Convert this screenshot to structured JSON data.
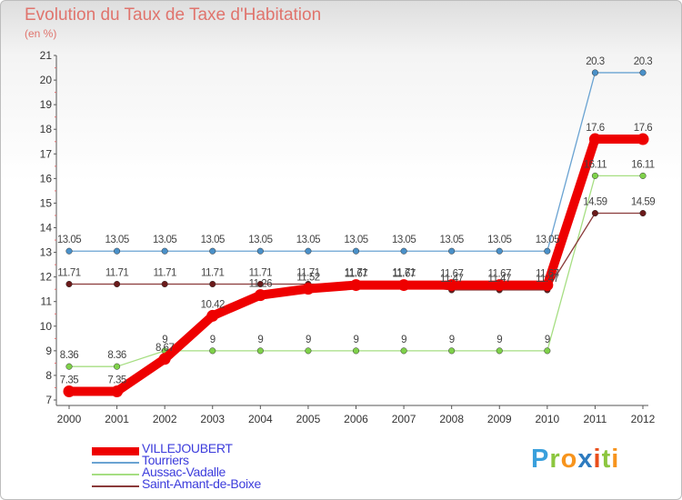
{
  "title": "Evolution du Taux de Taxe d'Habitation",
  "subtitle": "(en %)",
  "logo": [
    "P",
    "r",
    "o",
    "x",
    "i",
    "t",
    "i"
  ],
  "logo_colors": [
    "#3aa0dc",
    "#8cc63f",
    "#f7941d",
    "#2e7bbf",
    "#e94e1b",
    "#8cc63f",
    "#f7941d"
  ],
  "chart_data": {
    "type": "line",
    "x": [
      "2000",
      "2001",
      "2002",
      "2003",
      "2004",
      "2005",
      "2006",
      "2007",
      "2008",
      "2009",
      "2010",
      "2011",
      "2012"
    ],
    "ylim": [
      7,
      21
    ],
    "yticks": [
      "7",
      "8",
      "9",
      "10",
      "11",
      "12",
      "13",
      "14",
      "15",
      "16",
      "17",
      "18",
      "19",
      "20",
      "21"
    ],
    "grid": false,
    "series": [
      {
        "name": "Tourriers",
        "color": "#6aa3d2",
        "marker": "#4a90c8",
        "thick": false,
        "values": [
          13.05,
          13.05,
          13.05,
          13.05,
          13.05,
          13.05,
          13.05,
          13.05,
          13.05,
          13.05,
          13.05,
          20.3,
          20.3
        ],
        "labels": [
          "13.05",
          "13.05",
          "13.05",
          "13.05",
          "13.05",
          "13.05",
          "13.05",
          "13.05",
          "13.05",
          "13.05",
          "13.05",
          "20.3",
          "20.3"
        ]
      },
      {
        "name": "Aussac-Vadalle",
        "color": "#a6de82",
        "marker": "#7fd14a",
        "thick": false,
        "values": [
          8.36,
          8.36,
          9,
          9,
          9,
          9,
          9,
          9,
          9,
          9,
          9,
          16.11,
          16.11
        ],
        "labels": [
          "8.36",
          "8.36",
          "9",
          "9",
          "9",
          "9",
          "9",
          "9",
          "9",
          "9",
          "9",
          "16.11",
          "16.11"
        ]
      },
      {
        "name": "Saint-Amant-de-Boixe",
        "color": "#8a3a3a",
        "marker": "#6a1a1a",
        "thick": false,
        "values": [
          11.71,
          11.71,
          11.71,
          11.71,
          11.71,
          11.71,
          11.71,
          11.71,
          11.47,
          11.47,
          11.47,
          14.59,
          14.59
        ],
        "labels": [
          "11.71",
          "11.71",
          "11.71",
          "11.71",
          "11.71",
          "11.71",
          "11.71",
          "11.71",
          "11.47",
          "11.47",
          "11.47",
          "14.59",
          "14.59"
        ]
      },
      {
        "name": "VILLEJOUBERT",
        "color": "#ee0000",
        "marker": "#ee0000",
        "thick": true,
        "values": [
          7.35,
          7.35,
          8.67,
          10.42,
          11.26,
          11.52,
          11.67,
          11.67,
          11.67,
          11.67,
          11.67,
          17.6,
          17.6
        ],
        "labels": [
          "7.35",
          "7.35",
          "8.67",
          "10.42",
          "11.26",
          "11.52",
          "11.67",
          "11.67",
          "11.67",
          "11.67",
          "11.67",
          "17.6",
          "17.6"
        ]
      }
    ],
    "legend": [
      "VILLEJOUBERT",
      "Tourriers",
      "Aussac-Vadalle",
      "Saint-Amant-de-Boixe"
    ],
    "legend_colors": [
      "#ee0000",
      "#6aa3d2",
      "#a6de82",
      "#8a3a3a"
    ]
  }
}
